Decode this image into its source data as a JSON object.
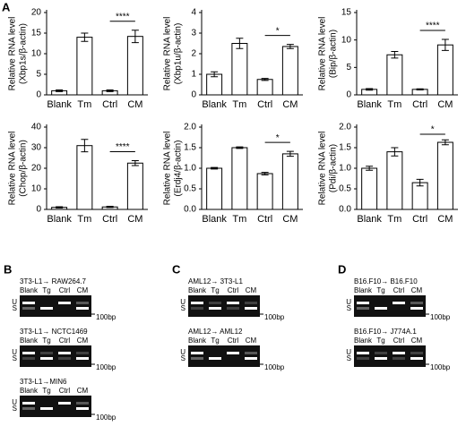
{
  "chart_data": [
    {
      "type": "bar",
      "ylabel": [
        "Relative RNA level",
        "(Xbp1s/β-actin)"
      ],
      "categories": [
        "Blank",
        "Tm",
        "Ctrl",
        "CM"
      ],
      "values": [
        1.0,
        14.0,
        1.0,
        14.2
      ],
      "errors": [
        0.2,
        1.0,
        0.2,
        1.5
      ],
      "ylim": [
        0,
        20
      ],
      "yticks": [
        0,
        5,
        10,
        15,
        20
      ],
      "color": "#ffffff",
      "annotation": "****"
    },
    {
      "type": "bar",
      "ylabel": [
        "Relative RNA level",
        "(Xbp1u/β-actin)"
      ],
      "categories": [
        "Blank",
        "Tm",
        "Ctrl",
        "CM"
      ],
      "values": [
        1.0,
        2.5,
        0.75,
        2.35
      ],
      "errors": [
        0.12,
        0.25,
        0.05,
        0.1
      ],
      "ylim": [
        0,
        4
      ],
      "yticks": [
        0,
        1,
        2,
        3,
        4
      ],
      "color": "#ffffff",
      "annotation": "*"
    },
    {
      "type": "bar",
      "ylabel": [
        "Relative RNA level",
        "(Bip/β-actin)"
      ],
      "categories": [
        "Blank",
        "Tm",
        "Ctrl",
        "CM"
      ],
      "values": [
        1.0,
        7.3,
        1.0,
        9.1
      ],
      "errors": [
        0.15,
        0.6,
        0.1,
        1.0
      ],
      "ylim": [
        0,
        15
      ],
      "yticks": [
        0,
        5,
        10,
        15
      ],
      "color": "#ffffff",
      "annotation": "****"
    },
    {
      "type": "bar",
      "ylabel": [
        "Relative RNA level",
        "(Chop/β-actin)"
      ],
      "categories": [
        "Blank",
        "Tm",
        "Ctrl",
        "CM"
      ],
      "values": [
        1.0,
        31.0,
        1.2,
        22.5
      ],
      "errors": [
        0.3,
        3.0,
        0.3,
        1.2
      ],
      "ylim": [
        0,
        40
      ],
      "yticks": [
        0,
        10,
        20,
        30,
        40
      ],
      "color": "#ffffff",
      "annotation": "****"
    },
    {
      "type": "bar",
      "ylabel": [
        "Relative RNA level",
        "(Erdj4/β-actin)"
      ],
      "categories": [
        "Blank",
        "Tm",
        "Ctrl",
        "CM"
      ],
      "values": [
        1.0,
        1.5,
        0.87,
        1.35
      ],
      "errors": [
        0.02,
        0.02,
        0.03,
        0.06
      ],
      "ylim": [
        0,
        2
      ],
      "yticks": [
        {
          "value": 0,
          "label": "0.0"
        },
        0.5,
        {
          "value": 1,
          "label": "1.0"
        },
        1.5,
        {
          "value": 2,
          "label": "2.0"
        }
      ],
      "color": "#ffffff",
      "annotation": "*"
    },
    {
      "type": "bar",
      "ylabel": [
        "Relative RNA level",
        "(Pdi/β-actin)"
      ],
      "categories": [
        "Blank",
        "Tm",
        "Ctrl",
        "CM"
      ],
      "values": [
        1.0,
        1.4,
        0.65,
        1.63
      ],
      "errors": [
        0.05,
        0.1,
        0.08,
        0.06
      ],
      "ylim": [
        0,
        2
      ],
      "yticks": [
        {
          "value": 0,
          "label": "0.0"
        },
        0.5,
        {
          "value": 1,
          "label": "1.0"
        },
        1.5,
        {
          "value": 2,
          "label": "2.0"
        }
      ],
      "color": "#ffffff",
      "annotation": "*"
    }
  ],
  "panel_a": "A",
  "gels": [
    {
      "label": "B",
      "blots": [
        {
          "title": "3T3-L1→ RAW264.7",
          "lanes": [
            "Blank",
            "Tg",
            "Ctrl",
            "CM"
          ],
          "bands": [
            "U",
            "S"
          ],
          "marker": "100bp"
        },
        {
          "title": "3T3-L1→ NCTC1469",
          "lanes": [
            "Blank",
            "Tg",
            "Ctrl",
            "CM"
          ],
          "bands": [
            "U",
            "S"
          ],
          "marker": "100bp"
        },
        {
          "title": "3T3-L1→MIN6",
          "lanes": [
            "Blank",
            "Tg",
            "Ctrl",
            "CM"
          ],
          "bands": [
            "U",
            "S"
          ],
          "marker": "100bp"
        }
      ]
    },
    {
      "label": "C",
      "blots": [
        {
          "title": "AML12→ 3T3-L1",
          "lanes": [
            "Blank",
            "Tg",
            "Ctrl",
            "CM"
          ],
          "bands": [
            "U",
            "S"
          ],
          "marker": "100bp"
        },
        {
          "title": "AML12→ AML12",
          "lanes": [
            "Blank",
            "Tg",
            "Ctrl",
            "CM"
          ],
          "bands": [
            "U",
            "S"
          ],
          "marker": "100bp"
        }
      ]
    },
    {
      "label": "D",
      "blots": [
        {
          "title": "B16.F10→ B16.F10",
          "lanes": [
            "Blank",
            "Tg",
            "Ctrl",
            "CM"
          ],
          "bands": [
            "U",
            "S"
          ],
          "marker": "100bp"
        },
        {
          "title": "B16.F10→ J774A.1",
          "lanes": [
            "Blank",
            "Tg",
            "Ctrl",
            "CM"
          ],
          "bands": [
            "U",
            "S"
          ],
          "marker": "100bp"
        }
      ]
    }
  ]
}
